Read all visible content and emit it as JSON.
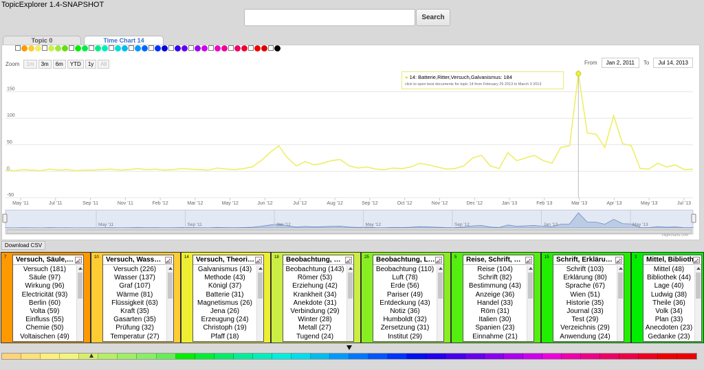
{
  "app": {
    "title": "TopicExplorer 1.4-SNAPSHOT"
  },
  "search": {
    "value": "",
    "button_label": "Search"
  },
  "tabs": [
    {
      "label": "Topic 0"
    },
    {
      "label": "Time Chart 14"
    }
  ],
  "swatch_colors": [
    "box",
    "#ff9900",
    "#ffcc33",
    "#eeee66",
    "box",
    "#ccee55",
    "#99ee33",
    "#66dd11",
    "box",
    "#00ee00",
    "#00ee44",
    "box",
    "#00ee88",
    "#00eebb",
    "box",
    "#00dddd",
    "#00bbee",
    "box",
    "#0099ff",
    "#0066ff",
    "box",
    "#0033ff",
    "#0000dd",
    "box",
    "#3300ee",
    "#6600ee",
    "box",
    "#9900ee",
    "#cc00ee",
    "box",
    "#ee00cc",
    "#ee0099",
    "box",
    "#ee0066",
    "#ee0033",
    "box",
    "#ee0000",
    "#dd0000",
    "box",
    "#000000"
  ],
  "zoom": {
    "label": "Zoom",
    "buttons": [
      "1m",
      "3m",
      "6m",
      "YTD",
      "1y",
      "All"
    ],
    "disabled": [
      "1m",
      "All"
    ]
  },
  "range": {
    "from_label": "From",
    "from_value": "Jan 2, 2011",
    "to_label": "To",
    "to_value": "Jul 14, 2013"
  },
  "tooltip": {
    "line1": "14: Batterie,Ritter,Versuch,Galvanismus: 184",
    "line2": "click to open best documents for topic 14 from February 25 2013 to March 3 2013"
  },
  "chart_data": {
    "type": "line",
    "yticks": [
      "150",
      "100",
      "50",
      "0",
      "-50"
    ],
    "xticks": [
      "May '11",
      "Jul '11",
      "Sep '11",
      "Nov '11",
      "Feb '12",
      "Mar '12",
      "May '12",
      "Jun '12",
      "Jul '12",
      "Aug '12",
      "Sep '12",
      "Oct '12",
      "Nov '12",
      "Dec '12",
      "Jan '13",
      "Feb '13",
      "Mar '13",
      "Apr '13",
      "May '13",
      "Jul '13"
    ],
    "navigator_ticks": [
      "May '11",
      "Sep '11",
      "Jan '12",
      "May '12",
      "Sep '12",
      "Jan '13",
      "May '13"
    ],
    "ylim": [
      -50,
      200
    ],
    "series": [
      {
        "color": "#eeee66",
        "values": [
          2,
          1,
          3,
          2,
          1,
          4,
          2,
          3,
          1,
          2,
          2,
          3,
          4,
          2,
          3,
          5,
          3,
          4,
          2,
          3,
          5,
          4,
          3,
          2,
          6,
          4,
          3,
          5,
          8,
          20,
          35,
          48,
          25,
          10,
          18,
          12,
          15,
          20,
          22,
          10,
          6,
          8,
          4,
          3,
          6,
          5,
          8,
          15,
          12,
          8,
          4,
          5,
          10,
          25,
          30,
          10,
          5,
          35,
          20,
          25,
          30,
          20,
          15,
          45,
          48,
          184,
          72,
          70,
          45,
          105,
          52,
          48,
          5,
          4,
          15,
          8,
          12,
          3,
          4
        ],
        "highlight_index": 65,
        "highlight_value": 184
      }
    ]
  },
  "credits": "Highcharts.com",
  "download_label": "Download CSV",
  "cards": [
    {
      "num": "7",
      "color": "#ff9900",
      "title": "Versuch, Säule,…",
      "words": [
        "Versuch (181)",
        "Säule (97)",
        "Wirkung (96)",
        "Electricität (93)",
        "Berlin (60)",
        "Volta (59)",
        "Einfluss (55)",
        "Chemie (50)",
        "Voltaischen (49)"
      ]
    },
    {
      "num": "10",
      "color": "#ffcc33",
      "title": "Versuch, Wass…",
      "words": [
        "Versuch (226)",
        "Wasser (137)",
        "Graf (107)",
        "Wärme (81)",
        "Flüssigkeit (63)",
        "Kraft (35)",
        "Gasarten (35)",
        "Prüfung (32)",
        "Temperatur (27)"
      ]
    },
    {
      "num": "14",
      "color": "#eeee33",
      "title": "Versuch, Theori…",
      "words": [
        "Galvanismus (43)",
        "Methode (43)",
        "Königl (37)",
        "Batterie (31)",
        "Magnetismus (26)",
        "Jena (26)",
        "Erzeugung (24)",
        "Christoph (19)",
        "Pfaff (18)"
      ]
    },
    {
      "num": "18",
      "color": "#ccee44",
      "title": "Beobachtung, …",
      "words": [
        "Beobachtung (143)",
        "Römer (53)",
        "Erziehung (42)",
        "Krankheit (34)",
        "Anekdote (31)",
        "Verbindung (29)",
        "Winter (28)",
        "Metall (27)",
        "Tugend (24)"
      ]
    },
    {
      "num": "25",
      "color": "#88ee22",
      "title": "Beobachtung, L…",
      "words": [
        "Beobachtung (110)",
        "Luft (78)",
        "Erde (56)",
        "Pariser (49)",
        "Entdeckung (43)",
        "Notiz (36)",
        "Humboldt (32)",
        "Zersetzung (31)",
        "Institut (29)"
      ]
    },
    {
      "num": "5",
      "color": "#55ee11",
      "title": "Reise, Schrift, …",
      "words": [
        "Reise (104)",
        "Schrift (82)",
        "Bestimmung (43)",
        "Anzeige (36)",
        "Handel (33)",
        "Röm (31)",
        "Italien (30)",
        "Spanien (23)",
        "Einnahme (21)"
      ]
    },
    {
      "num": "15",
      "color": "#22ee00",
      "title": "Schrift, Erkläru…",
      "words": [
        "Schrift (103)",
        "Erklärung (80)",
        "Sprache (67)",
        "Wien (51)",
        "Historie (35)",
        "Journal (33)",
        "Test (29)",
        "Verzeichnis (29)",
        "Anwendung (24)"
      ]
    },
    {
      "num": "3",
      "color": "#00ee00",
      "title": "Mittel, Bibliothe…",
      "words": [
        "Mittel (48)",
        "Bibliothek (44)",
        "Lage (40)",
        "Ludwig (38)",
        "Theile (36)",
        "Volk (34)",
        "Plan (33)",
        "Anecdoten (23)",
        "Gedanke (23)"
      ]
    }
  ],
  "colorbar": [
    "#ffd37a",
    "#ffe07a",
    "#fff07a",
    "#f4f47a",
    "#d8ee6a",
    "#b7ee66",
    "#a0ee66",
    "#88ee66",
    "#66ee55",
    "#00ee00",
    "#00ee33",
    "#00ee66",
    "#00ee99",
    "#00eebb",
    "#00eedd",
    "#00ddee",
    "#00bbee",
    "#0099ff",
    "#0077ff",
    "#0055ff",
    "#0033ff",
    "#0011ee",
    "#2200ee",
    "#4400ee",
    "#6600ee",
    "#8800ee",
    "#aa00ee",
    "#cc00ee",
    "#ee00dd",
    "#ee00aa",
    "#ee0088",
    "#ee0066",
    "#ee0044",
    "#ee0022",
    "#ee0000",
    "#ee0000"
  ]
}
